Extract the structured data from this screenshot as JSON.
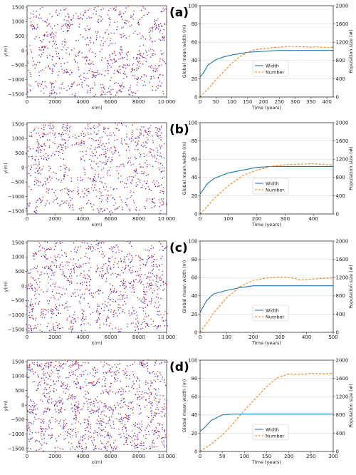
{
  "colors": {
    "width": "#1f77b4",
    "number": "#ff7f0e",
    "dot_blue": "#2a2ae6",
    "dot_red": "#e62a2a",
    "grid": "#d9d9d9",
    "axis": "#333333"
  },
  "scatter_axis": {
    "xlabel": "x(m)",
    "ylabel": "y(m)",
    "xticks": [
      "0",
      "2000",
      "4000",
      "6000",
      "8000",
      "10 000"
    ],
    "yticks": [
      "1500",
      "1000",
      "500",
      "0",
      "−500",
      "−1000",
      "−1500"
    ]
  },
  "line_axis": {
    "xlabel": "Time (years)",
    "ylabel_left": "Global mean width (m)",
    "ylabel_right": "Population size (#)",
    "yticks_left": [
      "0",
      "20",
      "40",
      "60",
      "80",
      "100"
    ],
    "yticks_right": [
      "0",
      "400",
      "800",
      "1200",
      "1600",
      "2000"
    ],
    "legend": [
      "Width",
      "Number"
    ]
  },
  "panels": [
    {
      "label": "(a)",
      "xticks": [
        "0",
        "50",
        "100",
        "150",
        "200",
        "250",
        "300",
        "350",
        "400"
      ]
    },
    {
      "label": "(b)",
      "xticks": [
        "0",
        "100",
        "200",
        "300",
        "400"
      ]
    },
    {
      "label": "(c)",
      "xticks": [
        "0",
        "100",
        "200",
        "300",
        "400",
        "500"
      ]
    },
    {
      "label": "(d)",
      "xticks": [
        "0",
        "50",
        "100",
        "150",
        "200",
        "250",
        "300"
      ]
    }
  ],
  "chart_data": [
    {
      "type": "scatter",
      "panel": "(a)",
      "xlabel": "x(m)",
      "ylabel": "y(m)",
      "xlim": [
        0,
        10000
      ],
      "ylim": [
        -1600,
        1550
      ],
      "density": 0.45,
      "description_series": [
        "blue points",
        "red points"
      ]
    },
    {
      "type": "line",
      "panel": "(a)",
      "xlabel": "Time (years)",
      "ylabel": "Global mean width (m)",
      "ylabel_right": "Population size (#)",
      "xlim": [
        0,
        420
      ],
      "ylim": [
        0,
        100
      ],
      "ylim_right": [
        0,
        2000
      ],
      "grid": true,
      "legend_position": "center",
      "series": [
        {
          "name": "Width",
          "axis": "left",
          "style": "solid",
          "x": [
            0,
            10,
            25,
            50,
            75,
            100,
            150,
            200,
            250,
            300,
            350,
            400,
            420
          ],
          "y": [
            22,
            26,
            35,
            41,
            44,
            46,
            49,
            50,
            51,
            51,
            51,
            51,
            51
          ]
        },
        {
          "name": "Number",
          "axis": "right",
          "style": "dashed",
          "x": [
            0,
            25,
            50,
            75,
            100,
            125,
            150,
            175,
            200,
            225,
            250,
            275,
            300,
            325,
            350,
            375,
            400,
            420
          ],
          "y": [
            0,
            180,
            380,
            560,
            740,
            880,
            980,
            1040,
            1060,
            1080,
            1090,
            1110,
            1110,
            1100,
            1090,
            1100,
            1080,
            1090
          ]
        }
      ]
    },
    {
      "type": "scatter",
      "panel": "(b)",
      "xlabel": "x(m)",
      "ylabel": "y(m)",
      "xlim": [
        0,
        10000
      ],
      "ylim": [
        -1600,
        1550
      ],
      "density": 0.5,
      "description_series": [
        "blue points",
        "red points"
      ]
    },
    {
      "type": "line",
      "panel": "(b)",
      "xlabel": "Time (years)",
      "ylabel": "Global mean width (m)",
      "ylabel_right": "Population size (#)",
      "xlim": [
        0,
        470
      ],
      "ylim": [
        0,
        100
      ],
      "ylim_right": [
        0,
        2000
      ],
      "grid": true,
      "legend_position": "center-right",
      "series": [
        {
          "name": "Width",
          "axis": "left",
          "style": "solid",
          "x": [
            0,
            10,
            25,
            50,
            100,
            150,
            200,
            250,
            300,
            350,
            400,
            450,
            470
          ],
          "y": [
            22,
            26,
            33,
            39,
            45,
            48,
            51,
            52,
            52,
            52,
            52,
            52,
            52
          ]
        },
        {
          "name": "Number",
          "axis": "right",
          "style": "dashed",
          "x": [
            0,
            25,
            50,
            100,
            150,
            200,
            250,
            300,
            350,
            400,
            450,
            470
          ],
          "y": [
            0,
            160,
            340,
            620,
            840,
            960,
            1040,
            1080,
            1090,
            1100,
            1080,
            1070
          ]
        }
      ]
    },
    {
      "type": "scatter",
      "panel": "(c)",
      "xlabel": "x(m)",
      "ylabel": "y(m)",
      "xlim": [
        0,
        10000
      ],
      "ylim": [
        -1600,
        1550
      ],
      "density": 0.6,
      "description_series": [
        "blue points",
        "red points"
      ]
    },
    {
      "type": "line",
      "panel": "(c)",
      "xlabel": "Time (years)",
      "ylabel": "Global mean width (m)",
      "ylabel_right": "Population size (#)",
      "xlim": [
        0,
        500
      ],
      "ylim": [
        0,
        100
      ],
      "ylim_right": [
        0,
        2000
      ],
      "grid": true,
      "legend_position": "lower-center",
      "series": [
        {
          "name": "Width",
          "axis": "left",
          "style": "solid",
          "x": [
            0,
            10,
            25,
            50,
            100,
            150,
            200,
            250,
            300,
            350,
            400,
            450,
            500
          ],
          "y": [
            22,
            27,
            35,
            42,
            46,
            49,
            51,
            51,
            51,
            51,
            51,
            51,
            51
          ]
        },
        {
          "name": "Number",
          "axis": "right",
          "style": "dashed",
          "x": [
            0,
            25,
            50,
            100,
            150,
            200,
            250,
            300,
            350,
            375,
            400,
            450,
            500
          ],
          "y": [
            0,
            200,
            420,
            760,
            1000,
            1140,
            1190,
            1210,
            1190,
            1150,
            1160,
            1180,
            1190
          ]
        }
      ]
    },
    {
      "type": "scatter",
      "panel": "(d)",
      "xlabel": "x(m)",
      "ylabel": "y(m)",
      "xlim": [
        0,
        10000
      ],
      "ylim": [
        -1600,
        1550
      ],
      "density": 0.85,
      "description_series": [
        "blue points",
        "red points"
      ]
    },
    {
      "type": "line",
      "panel": "(d)",
      "xlabel": "Time (years)",
      "ylabel": "Global mean width (m)",
      "ylabel_right": "Population size (#)",
      "xlim": [
        0,
        300
      ],
      "ylim": [
        0,
        100
      ],
      "ylim_right": [
        0,
        2000
      ],
      "grid": true,
      "legend_position": "lower-center",
      "series": [
        {
          "name": "Width",
          "axis": "left",
          "style": "solid",
          "x": [
            0,
            10,
            25,
            50,
            75,
            100,
            150,
            200,
            250,
            300
          ],
          "y": [
            22,
            26,
            34,
            40,
            41,
            41,
            41,
            41,
            41,
            41
          ]
        },
        {
          "name": "Number",
          "axis": "right",
          "style": "dashed",
          "x": [
            0,
            25,
            50,
            75,
            100,
            125,
            150,
            175,
            200,
            225,
            250,
            275,
            300
          ],
          "y": [
            0,
            160,
            360,
            620,
            900,
            1160,
            1420,
            1620,
            1700,
            1690,
            1710,
            1700,
            1710
          ]
        }
      ]
    }
  ]
}
